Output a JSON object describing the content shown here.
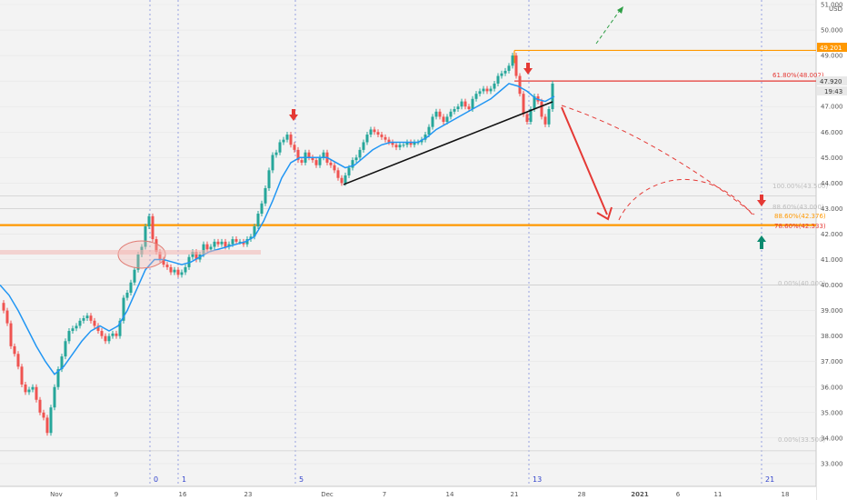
{
  "chart_data": {
    "type": "candlestick",
    "currency": "USD",
    "ylim": [
      32.0,
      51.0
    ],
    "y_ticks": [
      33,
      34,
      35,
      36,
      37,
      38,
      39,
      40,
      41,
      42,
      43,
      44,
      45,
      46,
      47,
      48,
      49,
      50,
      51
    ],
    "y_tick_labels": [
      "33.000",
      "34.000",
      "35.000",
      "36.000",
      "37.000",
      "38.000",
      "39.000",
      "40.000",
      "41.000",
      "42.000",
      "43.000",
      "44.000",
      "45.000",
      "46.000",
      "47.000",
      "48.000",
      "49.000",
      "50.000",
      "51.000"
    ],
    "x_tick_labels": [
      "Nov",
      "9",
      "16",
      "23",
      "Dec",
      "7",
      "14",
      "21",
      "28",
      "2021",
      "6",
      "11",
      "18"
    ],
    "last_price_label": "47.920",
    "high_price_label": "49.201",
    "countdown_label": "19:43",
    "cycle_labels": [
      "0",
      "1",
      "5",
      "13",
      "21"
    ],
    "fib_levels": [
      {
        "label": "61.80%(48.002)",
        "value": 48.002,
        "color": "#e53935"
      },
      {
        "label": "88.60%(42.376)",
        "value": 42.376,
        "color": "#ff9800"
      },
      {
        "label": "78.60%(42.333)",
        "value": 42.333,
        "color": "#e53935"
      }
    ],
    "faded_levels": [
      {
        "label": "100.00%(43.500)",
        "value": 43.5
      },
      {
        "label": "88.60%(43.000)",
        "value": 43.0
      },
      {
        "label": "0.00%(40.000)",
        "value": 40.0
      },
      {
        "label": "0.00%(33.500)",
        "value": 33.5
      }
    ],
    "horizontal_lines": [
      {
        "value": 49.201,
        "color": "#ff9800"
      },
      {
        "value": 48.002,
        "color": "#e53935"
      },
      {
        "value": 42.35,
        "color": "#ff9800"
      }
    ],
    "series": [
      {
        "name": "price",
        "points": [
          [
            0,
            39.3
          ],
          [
            4,
            39.0
          ],
          [
            8,
            38.5
          ],
          [
            12,
            37.6
          ],
          [
            16,
            37.3
          ],
          [
            20,
            36.8
          ],
          [
            24,
            36.1
          ],
          [
            28,
            35.8
          ],
          [
            32,
            35.9
          ],
          [
            36,
            36.0
          ],
          [
            40,
            35.5
          ],
          [
            44,
            35.0
          ],
          [
            48,
            34.8
          ],
          [
            52,
            34.2
          ],
          [
            56,
            35.2
          ],
          [
            60,
            36.0
          ],
          [
            64,
            36.7
          ],
          [
            68,
            37.2
          ],
          [
            72,
            37.8
          ],
          [
            76,
            38.2
          ],
          [
            80,
            38.3
          ],
          [
            84,
            38.4
          ],
          [
            88,
            38.6
          ],
          [
            92,
            38.7
          ],
          [
            96,
            38.8
          ],
          [
            100,
            38.6
          ],
          [
            104,
            38.4
          ],
          [
            108,
            38.2
          ],
          [
            112,
            38.0
          ],
          [
            116,
            37.8
          ],
          [
            120,
            38.0
          ],
          [
            124,
            38.1
          ],
          [
            128,
            38.0
          ],
          [
            132,
            38.6
          ],
          [
            136,
            39.5
          ],
          [
            140,
            39.7
          ],
          [
            144,
            40.1
          ],
          [
            148,
            40.6
          ],
          [
            152,
            41.2
          ],
          [
            156,
            41.5
          ],
          [
            160,
            42.3
          ],
          [
            164,
            42.7
          ],
          [
            168,
            41.8
          ],
          [
            172,
            41.3
          ],
          [
            176,
            41.0
          ],
          [
            180,
            40.8
          ],
          [
            184,
            40.7
          ],
          [
            188,
            40.5
          ],
          [
            192,
            40.6
          ],
          [
            196,
            40.4
          ],
          [
            200,
            40.5
          ],
          [
            204,
            40.7
          ],
          [
            208,
            41.1
          ],
          [
            212,
            41.3
          ],
          [
            216,
            41.0
          ],
          [
            220,
            41.2
          ],
          [
            224,
            41.6
          ],
          [
            228,
            41.4
          ],
          [
            232,
            41.5
          ],
          [
            236,
            41.7
          ],
          [
            240,
            41.6
          ],
          [
            244,
            41.7
          ],
          [
            248,
            41.5
          ],
          [
            252,
            41.6
          ],
          [
            256,
            41.8
          ],
          [
            260,
            41.7
          ],
          [
            264,
            41.7
          ],
          [
            268,
            41.6
          ],
          [
            272,
            41.8
          ],
          [
            276,
            41.9
          ],
          [
            280,
            42.3
          ],
          [
            284,
            42.8
          ],
          [
            288,
            43.2
          ],
          [
            292,
            43.8
          ],
          [
            296,
            44.5
          ],
          [
            300,
            45.1
          ],
          [
            304,
            45.2
          ],
          [
            308,
            45.6
          ],
          [
            312,
            45.7
          ],
          [
            316,
            45.9
          ],
          [
            320,
            45.5
          ],
          [
            324,
            45.3
          ],
          [
            328,
            44.9
          ],
          [
            332,
            44.8
          ],
          [
            336,
            45.2
          ],
          [
            340,
            45.0
          ],
          [
            344,
            44.9
          ],
          [
            348,
            44.7
          ],
          [
            352,
            45.0
          ],
          [
            356,
            45.2
          ],
          [
            360,
            44.8
          ],
          [
            364,
            44.7
          ],
          [
            368,
            44.5
          ],
          [
            372,
            44.2
          ],
          [
            376,
            44.0
          ],
          [
            380,
            44.3
          ],
          [
            384,
            44.6
          ],
          [
            388,
            44.9
          ],
          [
            392,
            45.0
          ],
          [
            396,
            45.3
          ],
          [
            400,
            45.6
          ],
          [
            404,
            45.9
          ],
          [
            408,
            46.1
          ],
          [
            412,
            46.0
          ],
          [
            416,
            45.9
          ],
          [
            420,
            45.8
          ],
          [
            424,
            45.7
          ],
          [
            428,
            45.6
          ],
          [
            432,
            45.5
          ],
          [
            436,
            45.4
          ],
          [
            440,
            45.5
          ],
          [
            444,
            45.5
          ],
          [
            448,
            45.6
          ],
          [
            452,
            45.5
          ],
          [
            456,
            45.6
          ],
          [
            460,
            45.6
          ],
          [
            464,
            45.7
          ],
          [
            468,
            45.9
          ],
          [
            472,
            46.2
          ],
          [
            476,
            46.6
          ],
          [
            480,
            46.8
          ],
          [
            484,
            46.6
          ],
          [
            488,
            46.4
          ],
          [
            492,
            46.6
          ],
          [
            496,
            46.8
          ],
          [
            500,
            46.9
          ],
          [
            504,
            47.0
          ],
          [
            508,
            47.2
          ],
          [
            512,
            47.0
          ],
          [
            516,
            46.9
          ],
          [
            520,
            47.3
          ],
          [
            524,
            47.5
          ],
          [
            528,
            47.6
          ],
          [
            532,
            47.7
          ],
          [
            536,
            47.6
          ],
          [
            540,
            47.7
          ],
          [
            544,
            47.9
          ],
          [
            548,
            48.2
          ],
          [
            552,
            48.3
          ],
          [
            556,
            48.4
          ],
          [
            560,
            48.6
          ],
          [
            564,
            49.0
          ],
          [
            568,
            48.2
          ],
          [
            572,
            47.5
          ],
          [
            576,
            46.7
          ],
          [
            580,
            46.4
          ],
          [
            584,
            46.9
          ],
          [
            588,
            47.4
          ],
          [
            592,
            47.2
          ],
          [
            596,
            46.6
          ],
          [
            600,
            46.3
          ],
          [
            604,
            46.9
          ],
          [
            608,
            47.9
          ]
        ]
      },
      {
        "name": "moving-average",
        "points": [
          [
            0,
            40.0
          ],
          [
            10,
            39.6
          ],
          [
            20,
            39.0
          ],
          [
            30,
            38.3
          ],
          [
            40,
            37.6
          ],
          [
            50,
            37.0
          ],
          [
            60,
            36.5
          ],
          [
            70,
            36.8
          ],
          [
            80,
            37.3
          ],
          [
            90,
            37.8
          ],
          [
            100,
            38.2
          ],
          [
            110,
            38.4
          ],
          [
            120,
            38.2
          ],
          [
            130,
            38.4
          ],
          [
            140,
            39.0
          ],
          [
            150,
            39.8
          ],
          [
            160,
            40.6
          ],
          [
            170,
            41.0
          ],
          [
            180,
            41.0
          ],
          [
            190,
            40.9
          ],
          [
            200,
            40.8
          ],
          [
            210,
            40.9
          ],
          [
            220,
            41.1
          ],
          [
            230,
            41.3
          ],
          [
            240,
            41.4
          ],
          [
            250,
            41.5
          ],
          [
            260,
            41.6
          ],
          [
            270,
            41.7
          ],
          [
            280,
            41.9
          ],
          [
            290,
            42.5
          ],
          [
            300,
            43.3
          ],
          [
            310,
            44.2
          ],
          [
            320,
            44.8
          ],
          [
            330,
            45.0
          ],
          [
            340,
            45.0
          ],
          [
            350,
            45.0
          ],
          [
            360,
            45.0
          ],
          [
            370,
            44.8
          ],
          [
            380,
            44.6
          ],
          [
            390,
            44.7
          ],
          [
            400,
            45.0
          ],
          [
            410,
            45.3
          ],
          [
            420,
            45.5
          ],
          [
            430,
            45.6
          ],
          [
            440,
            45.6
          ],
          [
            450,
            45.6
          ],
          [
            460,
            45.6
          ],
          [
            470,
            45.8
          ],
          [
            480,
            46.1
          ],
          [
            490,
            46.3
          ],
          [
            500,
            46.5
          ],
          [
            510,
            46.7
          ],
          [
            520,
            46.9
          ],
          [
            530,
            47.1
          ],
          [
            540,
            47.3
          ],
          [
            550,
            47.6
          ],
          [
            560,
            47.9
          ],
          [
            570,
            47.8
          ],
          [
            580,
            47.6
          ],
          [
            590,
            47.3
          ],
          [
            600,
            47.2
          ],
          [
            610,
            47.4
          ]
        ]
      }
    ]
  }
}
